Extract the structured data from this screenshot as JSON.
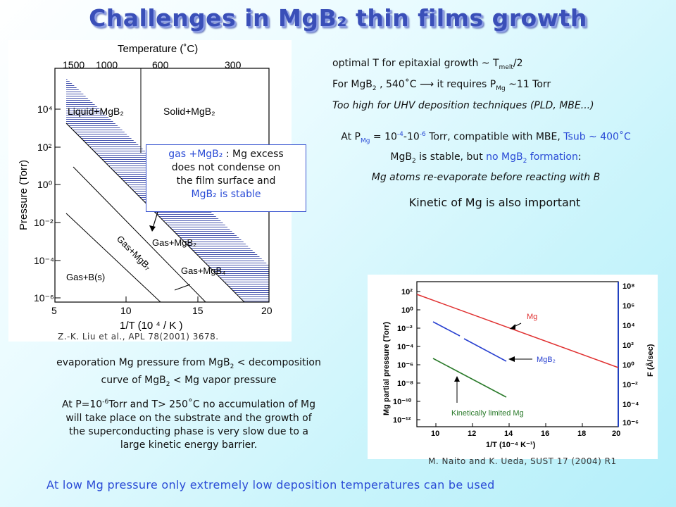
{
  "slide_title": "Challenges in MgB₂ thin films growth",
  "left_figure": {
    "top_axis_label": "Temperature (˚C)",
    "top_ticks": [
      "1500",
      "1000",
      "600",
      "300"
    ],
    "y_axis_label": "Pressure (Torr)",
    "y_ticks": [
      "10⁴",
      "10²",
      "10⁰",
      "10⁻²",
      "10⁻⁴",
      "10⁻⁶"
    ],
    "x_axis_label": "1/T (10 ⁴ / K )",
    "x_ticks": [
      "5",
      "10",
      "15",
      "20"
    ],
    "regions": {
      "liquid": "Liquid+MgB₂",
      "solid": "Solid+MgB₂",
      "gas_mgb2": "Gas+MgB₂",
      "gas_mgb4": "Gas+MgB₄",
      "gas_b": "Gas+B(s)",
      "gas_mgb7": "Gas+MgB₇"
    },
    "callout": {
      "line1_a": "gas +MgB₂",
      "line1_b": " : Mg excess",
      "line2": "does not condense on",
      "line3": "the film surface and",
      "line4": "MgB₂ is stable"
    },
    "citation": "Z.-K. Liu et al., APL 78(2001) 3678."
  },
  "right_text": {
    "line1": "optimal T for epitaxial growth ~ T",
    "line1_sub": "melt",
    "line1_end": "/2",
    "line2_a": "For MgB",
    "line2_sub": "2",
    "line2_b": " , 540˚C  ⟶ it requires P",
    "line2_sub2": "Mg",
    "line2_c": " ~11 Torr",
    "line3": "Too high for UHV deposition techniques (PLD, MBE...)",
    "block2_a": "At P",
    "block2_sub": "Mg",
    "block2_b": " = 10",
    "block2_sup1": "-4",
    "block2_c": "-10",
    "block2_sup2": "-6",
    "block2_d": " Torr, compatible with MBE, ",
    "block2_tsub": "Tsub ~ 400˚C",
    "block3_a": "MgB",
    "block3_sub": "2",
    "block3_b": " is stable, but ",
    "block3_blue": "no MgB",
    "block3_blue_sub": "2",
    "block3_blue_end": " formation",
    "block3_colon": ":",
    "block4": "Mg atoms re-evaporate before reacting with B",
    "kinetic": "Kinetic of Mg is also important"
  },
  "right_figure": {
    "y_left_label": "Mg partial pressure (Torr)",
    "y_left_ticks": [
      "10²",
      "10⁰",
      "10⁻²",
      "10⁻⁴",
      "10⁻⁶",
      "10⁻⁸",
      "10⁻¹⁰",
      "10⁻¹²"
    ],
    "y_right_label": "F (Å/sec)",
    "y_right_ticks": [
      "10⁸",
      "10⁶",
      "10⁴",
      "10²",
      "10⁰",
      "10⁻²",
      "10⁻⁴",
      "10⁻⁶"
    ],
    "x_label": "1/T (10⁻⁴ K⁻¹)",
    "x_ticks": [
      "10",
      "12",
      "14",
      "16",
      "18",
      "20"
    ],
    "label_mg": "Mg",
    "label_mgb2": "MgB₂",
    "label_kinetic": "Kinetically limited Mg",
    "colors": {
      "mg": "#e03030",
      "mgb2": "#2840d0",
      "kinetic": "#2a7a2a",
      "axis_right": "#2040c0"
    },
    "citation": "M. Naito and K. Ueda, SUST 17 (2004) R1"
  },
  "bottom_left": {
    "para1_a": "evaporation Mg pressure from MgB",
    "para1_sub": "2",
    "para1_b": " < decomposition",
    "para1_c": "curve of MgB",
    "para1_sub2": "2",
    "para1_d": " < Mg vapor pressure",
    "para2_a": "At P=10",
    "para2_sup": "-6",
    "para2_b": "Torr and T> 250˚C no accumulation of Mg",
    "para2_c": "will take place on the substrate and the growth of",
    "para2_d": "the superconducting phase is very slow due to a",
    "para2_e": "large kinetic energy barrier."
  },
  "footer": "At low Mg pressure only extremely low deposition temperatures can be used"
}
